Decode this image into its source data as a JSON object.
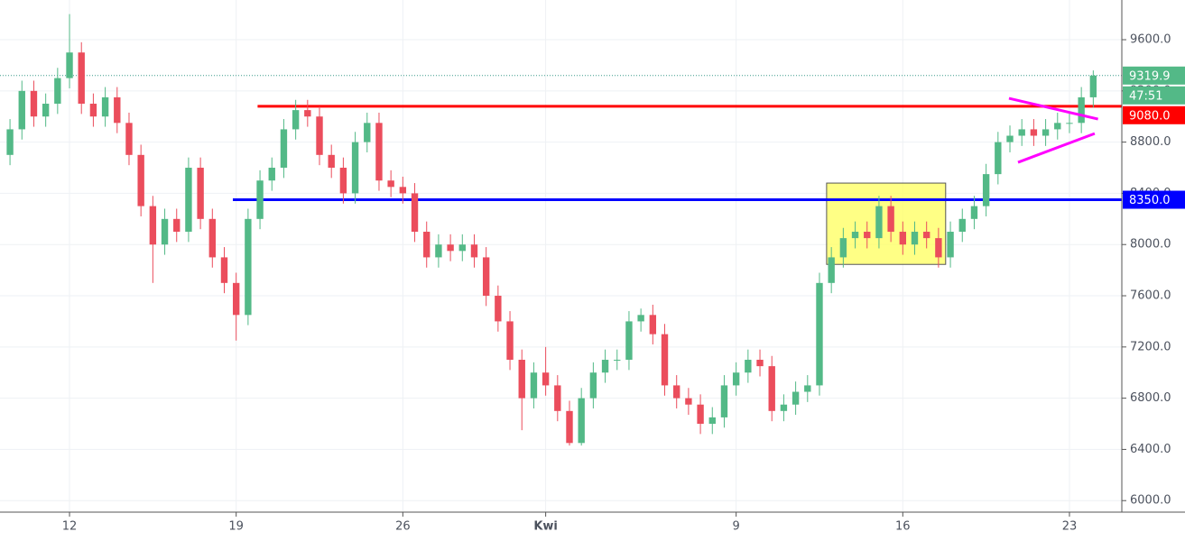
{
  "chart_data": {
    "type": "candlestick",
    "up_color": "#53b987",
    "down_color": "#eb4d5c",
    "grid": true,
    "xlim": [
      9.08,
      56.2
    ],
    "ylim": [
      5910,
      9910
    ],
    "xticks": [
      12,
      19,
      26,
      {
        "value": 32,
        "label": "Kwi"
      },
      {
        "value": 40,
        "label": "9"
      },
      {
        "value": 47,
        "label": "16"
      },
      {
        "value": 54,
        "label": "23"
      }
    ],
    "yticks": [
      {
        "value": 6000,
        "label": "6000.0"
      },
      {
        "value": 6400,
        "label": "6400.0"
      },
      {
        "value": 6800,
        "label": "6800.0"
      },
      {
        "value": 7200,
        "label": "7200.0"
      },
      {
        "value": 7600,
        "label": "7600.0"
      },
      {
        "value": 8000,
        "label": "8000.0"
      },
      {
        "value": 8400,
        "label": "8400.0"
      },
      {
        "value": 8800,
        "label": "8800.0"
      },
      {
        "value": 9200,
        "label": "9200.0"
      },
      {
        "value": 9600,
        "label": "9600.0"
      }
    ],
    "x": [
      9.5,
      10,
      10.5,
      11,
      11.5,
      12,
      12.5,
      13,
      13.5,
      14,
      14.5,
      15,
      15.5,
      16,
      16.5,
      17,
      17.5,
      18,
      18.5,
      19,
      19.5,
      20,
      20.5,
      21,
      21.5,
      22,
      22.5,
      23,
      23.5,
      24,
      24.5,
      25,
      25.5,
      26,
      26.5,
      27,
      27.5,
      28,
      28.5,
      29,
      29.5,
      30,
      30.5,
      31,
      31.5,
      32,
      32.5,
      33,
      33.5,
      34,
      34.5,
      35,
      35.5,
      36,
      36.5,
      37,
      37.5,
      38,
      38.5,
      39,
      39.5,
      40,
      40.5,
      41,
      41.5,
      42,
      42.5,
      43,
      43.5,
      44,
      44.5,
      45,
      45.5,
      46,
      46.5,
      47,
      47.5,
      48,
      48.5,
      49,
      49.5,
      50,
      50.5,
      51,
      51.5,
      52,
      52.5,
      53,
      53.5,
      54,
      54.5,
      55
    ],
    "candles": [
      [
        8700,
        8980,
        8620,
        8900
      ],
      [
        8900,
        9280,
        8820,
        9200
      ],
      [
        9200,
        9280,
        8920,
        9000
      ],
      [
        9000,
        9180,
        8920,
        9100
      ],
      [
        9100,
        9380,
        9020,
        9300
      ],
      [
        9300,
        9800,
        9220,
        9500
      ],
      [
        9500,
        9580,
        9020,
        9100
      ],
      [
        9100,
        9180,
        8920,
        9000
      ],
      [
        9000,
        9230,
        8920,
        9150
      ],
      [
        9150,
        9230,
        8870,
        8950
      ],
      [
        8950,
        9030,
        8620,
        8700
      ],
      [
        8700,
        8780,
        8220,
        8300
      ],
      [
        8300,
        8380,
        7700,
        8000
      ],
      [
        8000,
        8280,
        7920,
        8200
      ],
      [
        8200,
        8280,
        8020,
        8100
      ],
      [
        8100,
        8680,
        8020,
        8600
      ],
      [
        8600,
        8680,
        8120,
        8200
      ],
      [
        8200,
        8280,
        7820,
        7900
      ],
      [
        7900,
        7980,
        7620,
        7700
      ],
      [
        7700,
        7780,
        7250,
        7450
      ],
      [
        7450,
        8280,
        7370,
        8200
      ],
      [
        8200,
        8580,
        8120,
        8500
      ],
      [
        8500,
        8680,
        8420,
        8600
      ],
      [
        8600,
        8980,
        8520,
        8900
      ],
      [
        8900,
        9130,
        8820,
        9050
      ],
      [
        9050,
        9130,
        8920,
        9000
      ],
      [
        9000,
        9080,
        8620,
        8700
      ],
      [
        8700,
        8780,
        8520,
        8600
      ],
      [
        8600,
        8680,
        8320,
        8400
      ],
      [
        8400,
        8880,
        8320,
        8800
      ],
      [
        8800,
        9030,
        8720,
        8950
      ],
      [
        8950,
        9030,
        8420,
        8500
      ],
      [
        8500,
        8580,
        8370,
        8450
      ],
      [
        8450,
        8530,
        8320,
        8400
      ],
      [
        8400,
        8480,
        8020,
        8100
      ],
      [
        8100,
        8180,
        7820,
        7900
      ],
      [
        7900,
        8080,
        7820,
        8000
      ],
      [
        8000,
        8080,
        7870,
        7950
      ],
      [
        7950,
        8080,
        7870,
        8000
      ],
      [
        8000,
        8080,
        7820,
        7900
      ],
      [
        7900,
        7980,
        7520,
        7600
      ],
      [
        7600,
        7680,
        7320,
        7400
      ],
      [
        7400,
        7480,
        7020,
        7100
      ],
      [
        7100,
        7180,
        6550,
        6800
      ],
      [
        6800,
        7080,
        6720,
        7000
      ],
      [
        7000,
        7200,
        6820,
        6900
      ],
      [
        6900,
        6980,
        6620,
        6700
      ],
      [
        6700,
        6780,
        6430,
        6450
      ],
      [
        6450,
        6880,
        6430,
        6800
      ],
      [
        6800,
        7080,
        6720,
        7000
      ],
      [
        7000,
        7180,
        6920,
        7100
      ],
      [
        7100,
        7180,
        7020,
        7100
      ],
      [
        7100,
        7480,
        7020,
        7400
      ],
      [
        7400,
        7500,
        7320,
        7450
      ],
      [
        7450,
        7530,
        7220,
        7300
      ],
      [
        7300,
        7380,
        6820,
        6900
      ],
      [
        6900,
        6980,
        6720,
        6800
      ],
      [
        6800,
        6880,
        6670,
        6750
      ],
      [
        6750,
        6830,
        6520,
        6600
      ],
      [
        6600,
        6730,
        6520,
        6650
      ],
      [
        6650,
        6980,
        6570,
        6900
      ],
      [
        6900,
        7080,
        6820,
        7000
      ],
      [
        7000,
        7180,
        6920,
        7100
      ],
      [
        7100,
        7180,
        6970,
        7050
      ],
      [
        7050,
        7130,
        6620,
        6700
      ],
      [
        6700,
        6830,
        6620,
        6750
      ],
      [
        6750,
        6930,
        6670,
        6850
      ],
      [
        6850,
        6980,
        6770,
        6900
      ],
      [
        6900,
        7780,
        6820,
        7700
      ],
      [
        7700,
        7980,
        7620,
        7900
      ],
      [
        7900,
        8130,
        7820,
        8050
      ],
      [
        8050,
        8180,
        7970,
        8100
      ],
      [
        8100,
        8180,
        7970,
        8050
      ],
      [
        8050,
        8380,
        7970,
        8300
      ],
      [
        8300,
        8380,
        8020,
        8100
      ],
      [
        8100,
        8180,
        7920,
        8000
      ],
      [
        8000,
        8180,
        7920,
        8100
      ],
      [
        8100,
        8180,
        7970,
        8050
      ],
      [
        8050,
        8130,
        7820,
        7900
      ],
      [
        7900,
        8180,
        7820,
        8100
      ],
      [
        8100,
        8280,
        8020,
        8200
      ],
      [
        8200,
        8380,
        8120,
        8300
      ],
      [
        8300,
        8630,
        8220,
        8550
      ],
      [
        8550,
        8880,
        8470,
        8800
      ],
      [
        8800,
        8930,
        8720,
        8850
      ],
      [
        8850,
        8980,
        8770,
        8900
      ],
      [
        8900,
        8980,
        8770,
        8850
      ],
      [
        8850,
        8980,
        8770,
        8900
      ],
      [
        8900,
        9030,
        8820,
        8950
      ],
      [
        8950,
        9030,
        8870,
        8950
      ],
      [
        8950,
        9230,
        8870,
        9150
      ],
      [
        9150,
        9360,
        9070,
        9319.9
      ]
    ],
    "levels": [
      {
        "value": 9080,
        "label": "9080.0",
        "color": "#ff0000",
        "start": 19.9
      },
      {
        "value": 8350,
        "label": "8350.0",
        "color": "#0000ff",
        "start": 18.86
      }
    ],
    "last_price": {
      "value": 9319.9,
      "color": "#53b987"
    },
    "countdown": "47:51",
    "highlight_box": {
      "x0": 43.8,
      "x1": 48.8,
      "y0": 7845,
      "y1": 8480,
      "color": "#ffff66"
    },
    "trendlines": [
      {
        "x": [
          51.46,
          55.2
        ],
        "y": [
          9142,
          8980
        ],
        "color": "#ff00ff"
      },
      {
        "x": [
          51.84,
          55.06
        ],
        "y": [
          8642,
          8867
        ],
        "color": "#ff00ff"
      }
    ]
  }
}
